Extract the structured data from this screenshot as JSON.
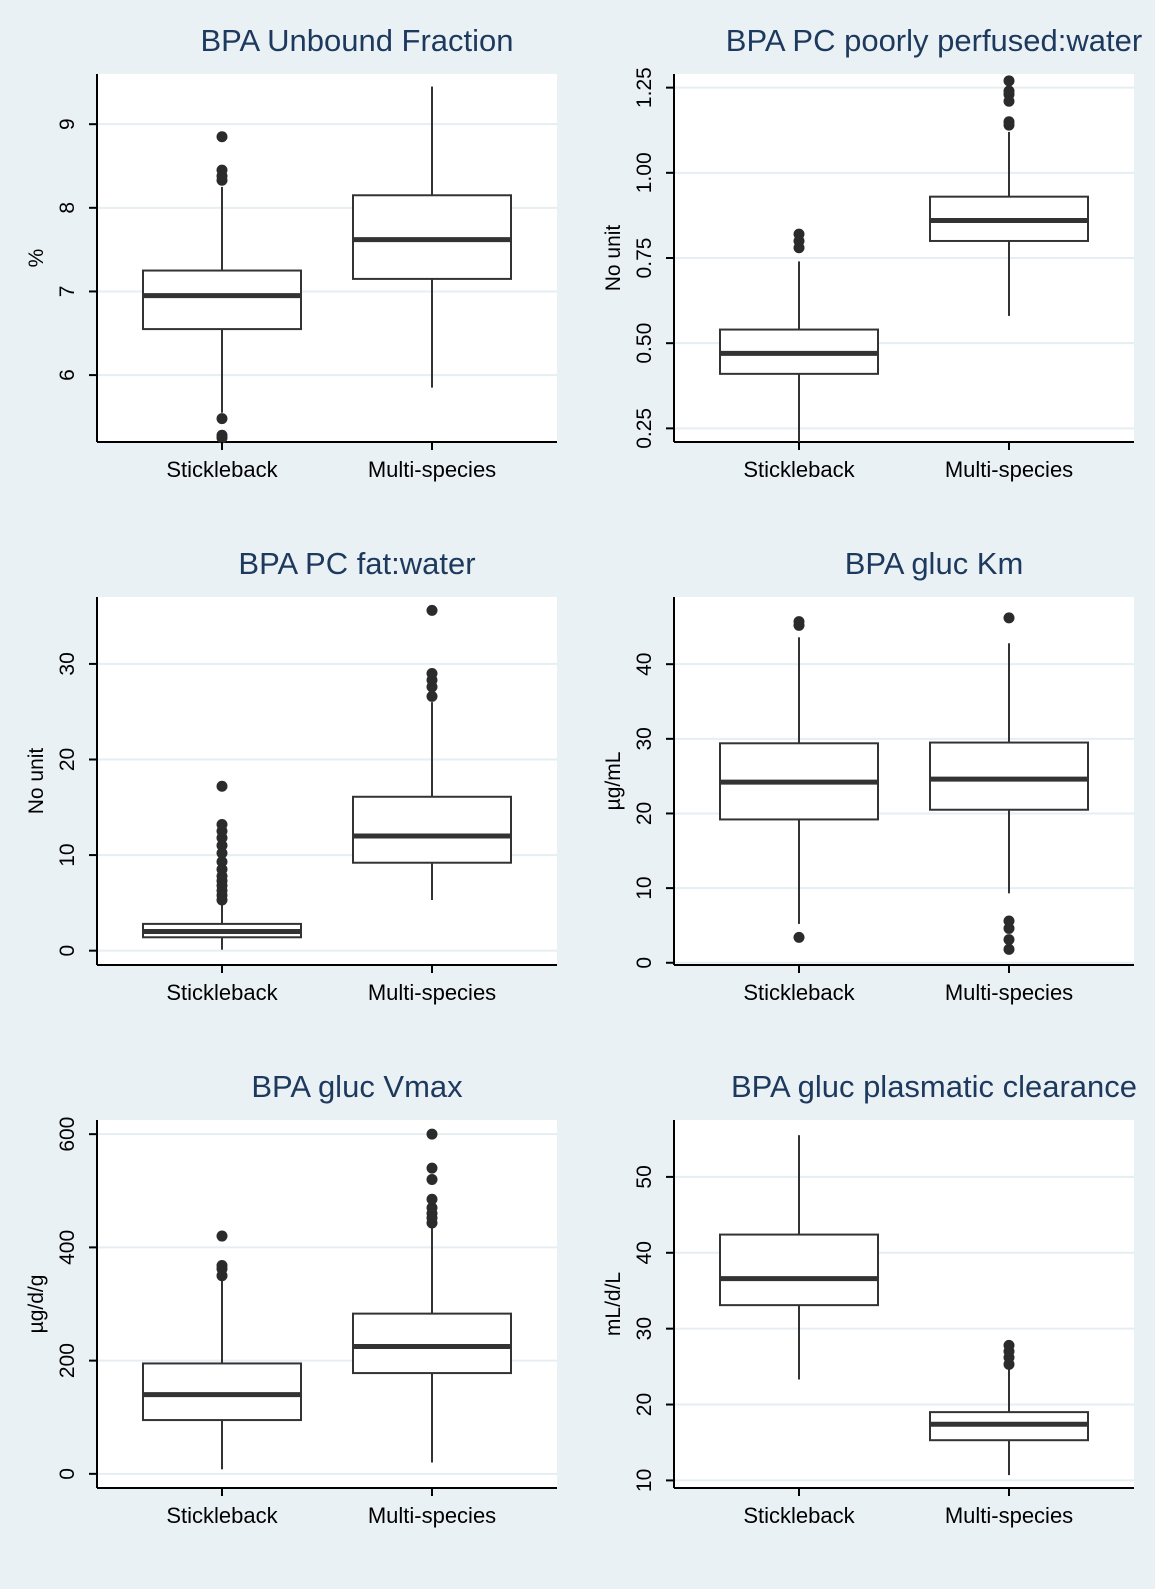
{
  "figure": {
    "background": "#eaf1f4",
    "title_color": "#1d3a5e",
    "plot_background": "#ffffff",
    "grid_color": "#e6eef2"
  },
  "chart_data": [
    {
      "type": "box",
      "title": "BPA Unbound Fraction",
      "ylabel": "%",
      "ylim": [
        5.2,
        9.6
      ],
      "yticks": [
        6,
        7,
        8,
        9
      ],
      "ytick_labels": [
        "6",
        "7",
        "8",
        "9"
      ],
      "categories": [
        "Stickleback",
        "Multi-species"
      ],
      "boxes": [
        {
          "category": "Stickleback",
          "whisker_low": 5.55,
          "q1": 6.55,
          "median": 6.95,
          "q3": 7.25,
          "whisker_high": 8.25,
          "outliers": [
            5.25,
            5.28,
            5.48,
            8.33,
            8.38,
            8.45,
            8.85
          ]
        },
        {
          "category": "Multi-species",
          "whisker_low": 5.85,
          "q1": 7.15,
          "median": 7.62,
          "q3": 8.15,
          "whisker_high": 9.45,
          "outliers": []
        }
      ]
    },
    {
      "type": "box",
      "title": "BPA PC poorly perfused:water",
      "ylabel": "No unit",
      "ylim": [
        0.21,
        1.29
      ],
      "yticks": [
        0.25,
        0.5,
        0.75,
        1.0,
        1.25
      ],
      "ytick_labels": [
        "0.25",
        "0.50",
        "0.75",
        "1.00",
        "1.25"
      ],
      "categories": [
        "Stickleback",
        "Multi-species"
      ],
      "boxes": [
        {
          "category": "Stickleback",
          "whisker_low": 0.2,
          "q1": 0.41,
          "median": 0.47,
          "q3": 0.54,
          "whisker_high": 0.74,
          "outliers": [
            0.78,
            0.8,
            0.82
          ]
        },
        {
          "category": "Multi-species",
          "whisker_low": 0.58,
          "q1": 0.8,
          "median": 0.86,
          "q3": 0.93,
          "whisker_high": 1.12,
          "outliers": [
            1.14,
            1.15,
            1.21,
            1.23,
            1.24,
            1.27
          ]
        }
      ]
    },
    {
      "type": "box",
      "title": "BPA PC fat:water",
      "ylabel": "No unit",
      "ylim": [
        -1.5,
        37
      ],
      "yticks": [
        0,
        10,
        20,
        30
      ],
      "ytick_labels": [
        "0",
        "10",
        "20",
        "30"
      ],
      "categories": [
        "Stickleback",
        "Multi-species"
      ],
      "boxes": [
        {
          "category": "Stickleback",
          "whisker_low": 0.1,
          "q1": 1.4,
          "median": 2.0,
          "q3": 2.8,
          "whisker_high": 5.0,
          "outliers": [
            5.3,
            5.8,
            6.3,
            6.8,
            7.3,
            7.8,
            8.5,
            9.3,
            10.2,
            11.0,
            11.8,
            12.5,
            13.2,
            17.2
          ]
        },
        {
          "category": "Multi-species",
          "whisker_low": 5.3,
          "q1": 9.2,
          "median": 12.0,
          "q3": 16.1,
          "whisker_high": 26.0,
          "outliers": [
            26.6,
            27.6,
            28.3,
            29.0,
            35.6
          ]
        }
      ]
    },
    {
      "type": "box",
      "title": "BPA gluc Km",
      "ylabel": "µg/mL",
      "ylim": [
        -0.3,
        49
      ],
      "yticks": [
        0,
        10,
        20,
        30,
        40
      ],
      "ytick_labels": [
        "0",
        "10",
        "20",
        "30",
        "40"
      ],
      "categories": [
        "Stickleback",
        "Multi-species"
      ],
      "boxes": [
        {
          "category": "Stickleback",
          "whisker_low": 5.2,
          "q1": 19.2,
          "median": 24.2,
          "q3": 29.4,
          "whisker_high": 43.6,
          "outliers": [
            3.4,
            45.2,
            45.7
          ]
        },
        {
          "category": "Multi-species",
          "whisker_low": 9.3,
          "q1": 20.5,
          "median": 24.6,
          "q3": 29.5,
          "whisker_high": 42.8,
          "outliers": [
            1.8,
            3.1,
            4.6,
            5.6,
            46.2
          ]
        }
      ]
    },
    {
      "type": "box",
      "title": "BPA gluc Vmax",
      "ylabel": "µg/d/g",
      "ylim": [
        -25,
        625
      ],
      "yticks": [
        0,
        200,
        400,
        600
      ],
      "ytick_labels": [
        "0",
        "200",
        "400",
        "600"
      ],
      "categories": [
        "Stickleback",
        "Multi-species"
      ],
      "boxes": [
        {
          "category": "Stickleback",
          "whisker_low": 8,
          "q1": 95,
          "median": 140,
          "q3": 195,
          "whisker_high": 345,
          "outliers": [
            350,
            362,
            368,
            420
          ]
        },
        {
          "category": "Multi-species",
          "whisker_low": 20,
          "q1": 178,
          "median": 225,
          "q3": 283,
          "whisker_high": 440,
          "outliers": [
            443,
            452,
            460,
            470,
            485,
            520,
            540,
            600
          ]
        }
      ]
    },
    {
      "type": "box",
      "title": "BPA gluc plasmatic clearance",
      "ylabel": "mL/d/L",
      "ylim": [
        9,
        57.5
      ],
      "yticks": [
        10,
        20,
        30,
        40,
        50
      ],
      "ytick_labels": [
        "10",
        "20",
        "30",
        "40",
        "50"
      ],
      "categories": [
        "Stickleback",
        "Multi-species"
      ],
      "boxes": [
        {
          "category": "Stickleback",
          "whisker_low": 23.3,
          "q1": 33.1,
          "median": 36.6,
          "q3": 42.4,
          "whisker_high": 55.5,
          "outliers": []
        },
        {
          "category": "Multi-species",
          "whisker_low": 10.7,
          "q1": 15.3,
          "median": 17.4,
          "q3": 19.0,
          "whisker_high": 24.8,
          "outliers": [
            25.3,
            26.2,
            27.0,
            27.8
          ]
        }
      ]
    }
  ]
}
